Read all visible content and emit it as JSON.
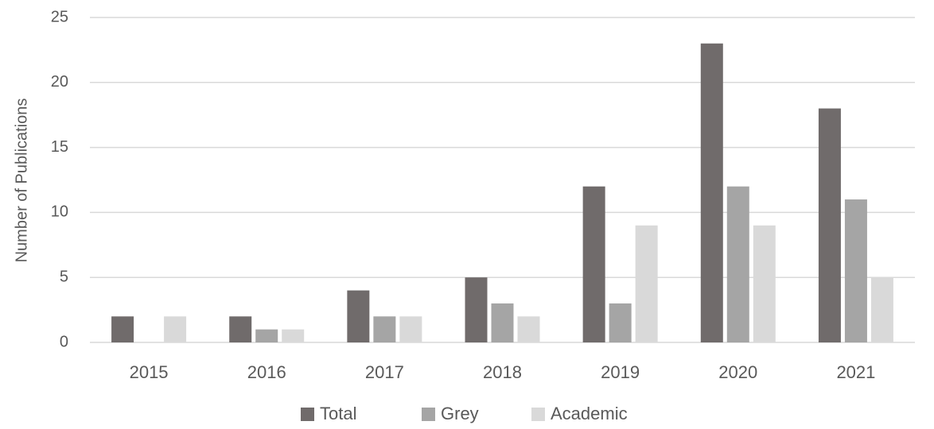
{
  "chart_data": {
    "type": "bar",
    "categories": [
      "2015",
      "2016",
      "2017",
      "2018",
      "2019",
      "2020",
      "2021"
    ],
    "series": [
      {
        "name": "Total",
        "color": "#706b6b",
        "values": [
          2,
          2,
          4,
          5,
          12,
          23,
          18
        ]
      },
      {
        "name": "Grey",
        "color": "#a5a5a5",
        "values": [
          0,
          1,
          2,
          3,
          3,
          12,
          11
        ]
      },
      {
        "name": "Academic",
        "color": "#d9d9d9",
        "values": [
          2,
          1,
          2,
          2,
          9,
          9,
          5
        ]
      }
    ],
    "y_label": "Number of Publications",
    "ylim": [
      0,
      25
    ],
    "yticks": [
      0,
      5,
      10,
      15,
      20,
      25
    ],
    "grid": true,
    "legend": "bottom"
  }
}
